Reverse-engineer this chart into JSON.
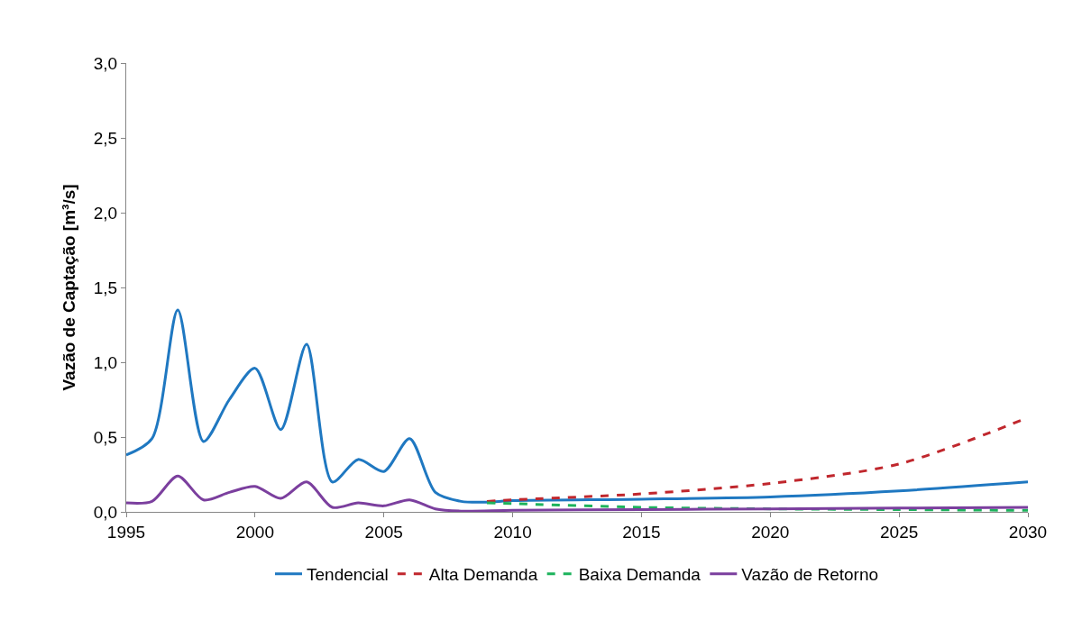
{
  "chart_data": {
    "type": "line",
    "ylabel": "Vazão de Captação [m³/s]",
    "xlim": [
      1995,
      2030
    ],
    "xticks": [
      1995,
      2000,
      2005,
      2010,
      2015,
      2020,
      2025,
      2030
    ],
    "ylim": [
      0,
      3
    ],
    "yticks": [
      {
        "value": 0,
        "label": "0,0"
      },
      {
        "value": 0.5,
        "label": "0,5"
      },
      {
        "value": 1,
        "label": "1,0"
      },
      {
        "value": 1.5,
        "label": "1,5"
      },
      {
        "value": 2,
        "label": "2,0"
      },
      {
        "value": 2.5,
        "label": "2,5"
      },
      {
        "value": 3,
        "label": "3,0"
      }
    ],
    "legend": "bottom",
    "marker": "none",
    "series": [
      {
        "name": "Tendencial",
        "color": "#1f78c1",
        "line_style": "solid",
        "x": [
          1995,
          1996,
          1997,
          1998,
          1999,
          2000,
          2001,
          2002,
          2003,
          2004,
          2005,
          2006,
          2007,
          2008,
          2009,
          2010,
          2015,
          2020,
          2025,
          2030
        ],
        "values": [
          0.38,
          0.49,
          1.35,
          0.47,
          0.75,
          0.96,
          0.55,
          1.12,
          0.2,
          0.35,
          0.27,
          0.49,
          0.13,
          0.07,
          0.065,
          0.075,
          0.085,
          0.1,
          0.14,
          0.2
        ]
      },
      {
        "name": "Alta Demanda",
        "color": "#c0272d",
        "line_style": "dashed",
        "x": [
          2009,
          2010,
          2015,
          2020,
          2025,
          2030
        ],
        "values": [
          0.07,
          0.08,
          0.12,
          0.19,
          0.32,
          0.63
        ]
      },
      {
        "name": "Baixa Demanda",
        "color": "#1db35c",
        "line_style": "dashed",
        "x": [
          2009,
          2010,
          2015,
          2020,
          2025,
          2030
        ],
        "values": [
          0.06,
          0.055,
          0.03,
          0.02,
          0.015,
          0.01
        ]
      },
      {
        "name": "Vazão de Retorno",
        "color": "#7b3f9e",
        "line_style": "solid",
        "x": [
          1995,
          1996,
          1997,
          1998,
          1999,
          2000,
          2001,
          2002,
          2003,
          2004,
          2005,
          2006,
          2007,
          2008,
          2010,
          2015,
          2020,
          2025,
          2030
        ],
        "values": [
          0.06,
          0.07,
          0.24,
          0.08,
          0.13,
          0.17,
          0.09,
          0.2,
          0.03,
          0.06,
          0.04,
          0.08,
          0.02,
          0.005,
          0.01,
          0.015,
          0.02,
          0.025,
          0.03
        ]
      }
    ]
  }
}
